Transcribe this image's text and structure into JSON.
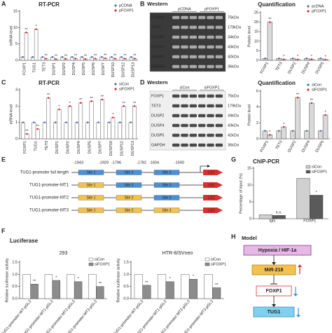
{
  "chart_data": [
    {
      "type": "bar",
      "title": "RT-PCR",
      "ylabel": "mRNA level",
      "categories": [
        "FOXP1",
        "TUG1",
        "TET3",
        "DUSP1",
        "DUSP2",
        "DUSP4",
        "DUSP5",
        "DUSP6",
        "DUSP7",
        "DUSP10",
        "DUSP12",
        "DUSP13"
      ],
      "series": [
        {
          "name": "pCDNA",
          "color": "#4a6fb5",
          "values": [
            1,
            1,
            1,
            1,
            1,
            1,
            1,
            1,
            1,
            1,
            1,
            1
          ]
        },
        {
          "name": "pFOXP1",
          "color": "#d9302c",
          "values": [
            8.5,
            9.5,
            0.5,
            0.4,
            0.45,
            0.5,
            0.4,
            0.5,
            0.6,
            0.5,
            0.5,
            0.5
          ],
          "significance": [
            "**",
            "*",
            "**",
            "**",
            "**",
            "**",
            "**",
            "**",
            "**",
            "**",
            "**",
            "**"
          ]
        }
      ],
      "ylim": [
        0,
        15
      ],
      "yticks": [
        0,
        5,
        10,
        15
      ],
      "legend": "upper right"
    },
    {
      "type": "bar",
      "title": "Quantification",
      "ylabel": "Protein level",
      "categories": [
        "FOXP1",
        "TET3",
        "DUSP2",
        "DUSP4",
        "DUSP5"
      ],
      "series": [
        {
          "name": "pcDNA",
          "color": "#4a6fb5",
          "values": [
            1,
            1,
            1,
            1,
            1
          ]
        },
        {
          "name": "pFOXP1",
          "color": "#d9302c",
          "values": [
            20,
            0.5,
            0.45,
            0.6,
            0.4
          ],
          "significance": [
            "**",
            "*",
            "*",
            "*",
            "*"
          ]
        }
      ],
      "ylim": [
        0,
        25
      ],
      "yticks": [
        0,
        5,
        10,
        15,
        20,
        25
      ],
      "legend": "upper right"
    },
    {
      "type": "bar",
      "title": "RT-PCR",
      "ylabel": "mRNA level",
      "categories": [
        "FOXP1",
        "TUG1",
        "TET3",
        "DUSP1",
        "DUSP2",
        "DUSP4",
        "DUSP5",
        "DUSP7",
        "DUSP10",
        "DUSP12",
        "DUSP13"
      ],
      "series": [
        {
          "name": "siCon",
          "color": "#4a6fb5",
          "values": [
            1,
            1,
            1,
            1,
            1,
            1,
            1,
            1,
            1,
            1,
            1
          ]
        },
        {
          "name": "siFOXP1",
          "color": "#d9302c",
          "values": [
            0.3,
            0.6,
            2.5,
            1.8,
            2.0,
            2.2,
            2.3,
            2.4,
            1.3,
            2.0,
            2.0
          ],
          "significance": [
            "**",
            "**",
            "**",
            "*",
            "*",
            "**",
            "**",
            "**",
            "*",
            "**",
            "**"
          ]
        }
      ],
      "ylim": [
        0,
        3
      ],
      "yticks": [
        0,
        1,
        2,
        3
      ],
      "legend": "upper right"
    },
    {
      "type": "bar",
      "title": "Quantification",
      "ylabel": "Protein level",
      "categories": [
        "FOXP1",
        "TET3",
        "DUSP2",
        "DUSP4",
        "DUSP5"
      ],
      "series": [
        {
          "name": "siCon",
          "color": "#4a6fb5",
          "values": [
            1,
            1,
            1,
            1,
            1
          ]
        },
        {
          "name": "siFOXP1",
          "color": "#d9302c",
          "values": [
            0.5,
            1.5,
            5.2,
            4.5,
            3.0
          ],
          "significance": [
            "*",
            "*",
            "**",
            "**",
            "*"
          ]
        }
      ],
      "ylim": [
        0,
        6
      ],
      "yticks": [
        0,
        2,
        4,
        6
      ],
      "legend": "upper right"
    },
    {
      "type": "bar",
      "title": "293",
      "ylabel": "Relative luciferase activity",
      "categories": [
        "TUG1-promoter-WT-pGL3",
        "TUG1-promoter-MT1-pGL3",
        "TUG1-promoter-MT2-pGL3",
        "TUG1-promoter-MT3-pGL3"
      ],
      "series": [
        {
          "name": "siCon",
          "color": "#ffffff",
          "values": [
            1,
            1,
            1,
            1
          ]
        },
        {
          "name": "siFOXP1",
          "color": "#8c8c8c",
          "values": [
            0.6,
            0.75,
            0.7,
            0.5
          ],
          "significance": [
            "**",
            "*",
            "*",
            "**"
          ]
        }
      ],
      "ylim": [
        0,
        1.5
      ],
      "yticks": [
        {
          "value": 0,
          "label": "0.0"
        },
        0.5,
        {
          "value": 1,
          "label": "1.0"
        },
        1.5
      ],
      "legend": "upper right"
    },
    {
      "type": "bar",
      "title": "HTR-8/SVneo",
      "ylabel": "Relative luciferase activity",
      "categories": [
        "TUG1-promoter-WT-pGL3",
        "TUG1-promoter-MT1-pGL3",
        "TUG1-promoter-MT2-pGL3",
        "TUG1-promoter-MT3-pGL3"
      ],
      "series": [
        {
          "name": "siCon",
          "color": "#ffffff",
          "values": [
            1,
            1,
            1,
            1
          ]
        },
        {
          "name": "siFOXP1",
          "color": "#8c8c8c",
          "values": [
            0.55,
            0.7,
            0.8,
            0.45
          ],
          "significance": [
            "**",
            "*",
            "*",
            "**"
          ]
        }
      ],
      "ylim": [
        0,
        1.5
      ],
      "yticks": [
        {
          "value": 0,
          "label": "0.0"
        },
        0.5,
        {
          "value": 1,
          "label": "1.0"
        },
        1.5
      ],
      "legend": "upper right"
    },
    {
      "type": "bar",
      "title": "ChIP-PCR",
      "ylabel": "Percentage of input (%)",
      "categories": [
        "IgG",
        "FOXP1"
      ],
      "series": [
        {
          "name": "siCon",
          "color": "#d0d0d0",
          "values": [
            1.2,
            12
          ]
        },
        {
          "name": "siFOXP1",
          "color": "#5a5a5a",
          "values": [
            1.0,
            7
          ],
          "significance": [
            "n.s.",
            "*"
          ]
        }
      ],
      "ylim": [
        0,
        15
      ],
      "yticks": [
        0,
        5,
        10,
        15
      ],
      "legend": "upper right"
    }
  ],
  "figure": {
    "panel_labels": [
      "A",
      "B",
      "C",
      "D",
      "E",
      "F",
      "G",
      "H"
    ],
    "western_b": {
      "label": "Western",
      "groups": [
        "pCDNA",
        "pFOXP1"
      ],
      "rows": [
        "FOXP1",
        "TET3",
        "DUSP2",
        "DUSP4",
        "DUSP5",
        "GAPDH"
      ],
      "sizes": [
        "75kDa",
        "179kDa",
        "34kDa",
        "43kDa",
        "42kDa",
        "36kDa"
      ]
    },
    "western_d": {
      "label": "Western",
      "groups": [
        "siCon",
        "siFOXP1"
      ],
      "rows": [
        "FOXP1",
        "TET3",
        "DUSP2",
        "DUSP4",
        "DUSP5",
        "GAPDH"
      ],
      "sizes": [
        "75kDa",
        "179kDa",
        "34kDa",
        "43kDa",
        "42kDa",
        "36kDa"
      ]
    },
    "luciferase_title": "Luciferase",
    "promoter": {
      "positions": [
        "-1943",
        "-1929",
        "-1796",
        "-1782",
        "-1604",
        "-1590"
      ],
      "sites": [
        "Site 1",
        "Site 2",
        "Site 3"
      ],
      "reporter": "LUC",
      "constructs": [
        {
          "name": "TUG1-promoter full length",
          "mutated": [
            false,
            false,
            false
          ]
        },
        {
          "name": "TUG1-promoter-MT1",
          "mutated": [
            true,
            false,
            false
          ]
        },
        {
          "name": "TUG1-promoter-MT2",
          "mutated": [
            true,
            true,
            false
          ]
        },
        {
          "name": "TUG1-promoter-MT3",
          "mutated": [
            true,
            true,
            true
          ]
        }
      ]
    },
    "model": {
      "title": "Model",
      "nodes": [
        "Hypoxia / HIF-1a",
        "MiR-218",
        "FOXP1",
        "TUG1"
      ]
    }
  }
}
